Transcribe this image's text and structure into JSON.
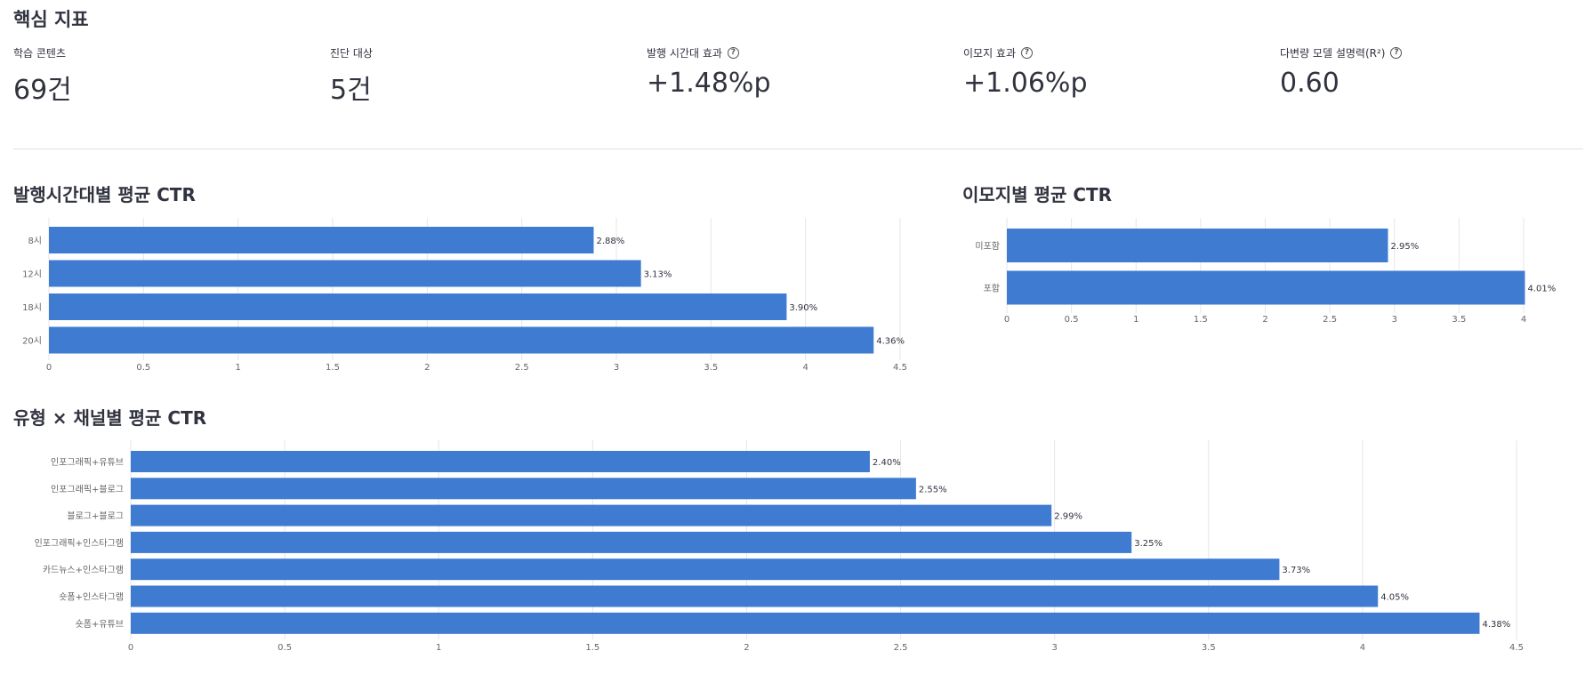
{
  "metrics_title": "핵심 지표",
  "metrics": [
    {
      "label": "학습 콘텐츠",
      "value": "69건",
      "help": false
    },
    {
      "label": "진단 대상",
      "value": "5건",
      "help": false
    },
    {
      "label": "발행 시간대 효과",
      "value": "+1.48%p",
      "help": true
    },
    {
      "label": "이모지 효과",
      "value": "+1.06%p",
      "help": true
    },
    {
      "label": "다변량 모델 설명력(R²)",
      "value": "0.60",
      "help": true
    }
  ],
  "help_icon": "question-circle-icon",
  "colors": {
    "bar": "#3e7bd1",
    "grid": "#e6e6ea",
    "text": "#31333f",
    "axis_text": "#666666"
  },
  "chart_data": [
    {
      "type": "bar",
      "orientation": "horizontal",
      "title": "발행시간대별 평균 CTR",
      "categories": [
        "8시",
        "12시",
        "18시",
        "20시"
      ],
      "values": [
        2.88,
        3.13,
        3.9,
        4.36
      ],
      "value_labels": [
        "2.88%",
        "3.13%",
        "3.90%",
        "4.36%"
      ],
      "xlim": [
        0,
        4.5
      ],
      "x_ticks": [
        "0",
        "0.5",
        "1",
        "1.5",
        "2",
        "2.5",
        "3",
        "3.5",
        "4",
        "4.5"
      ],
      "grid": true,
      "xlabel": "",
      "ylabel": ""
    },
    {
      "type": "bar",
      "orientation": "horizontal",
      "title": "이모지별 평균 CTR",
      "categories": [
        "미포함",
        "포함"
      ],
      "values": [
        2.95,
        4.01
      ],
      "value_labels": [
        "2.95%",
        "4.01%"
      ],
      "xlim": [
        0,
        4
      ],
      "x_ticks": [
        "0",
        "0.5",
        "1",
        "1.5",
        "2",
        "2.5",
        "3",
        "3.5",
        "4"
      ],
      "grid": true,
      "xlabel": "",
      "ylabel": ""
    },
    {
      "type": "bar",
      "orientation": "horizontal",
      "title": "유형 × 채널별 평균 CTR",
      "categories": [
        "인포그래픽+유튜브",
        "인포그래픽+블로그",
        "블로그+블로그",
        "인포그래픽+인스타그램",
        "카드뉴스+인스타그램",
        "숏폼+인스타그램",
        "숏폼+유튜브"
      ],
      "values": [
        2.4,
        2.55,
        2.99,
        3.25,
        3.73,
        4.05,
        4.38
      ],
      "value_labels": [
        "2.40%",
        "2.55%",
        "2.99%",
        "3.25%",
        "3.73%",
        "4.05%",
        "4.38%"
      ],
      "xlim": [
        0,
        4.5
      ],
      "x_ticks": [
        "0",
        "0.5",
        "1",
        "1.5",
        "2",
        "2.5",
        "3",
        "3.5",
        "4",
        "4.5"
      ],
      "grid": true,
      "xlabel": "",
      "ylabel": ""
    }
  ]
}
